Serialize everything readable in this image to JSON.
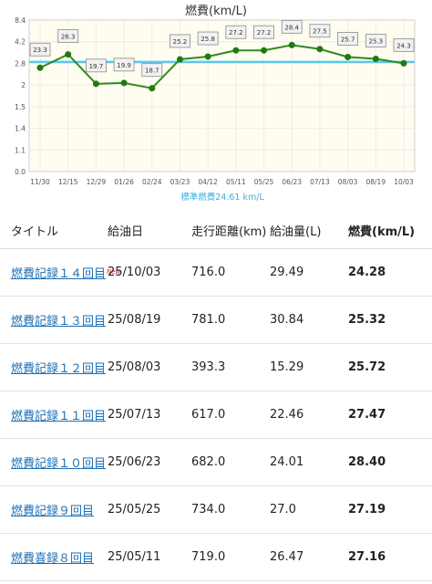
{
  "chart_data": {
    "type": "line",
    "title": "燃費(km/L)",
    "categories": [
      "11/30",
      "12/15",
      "12/29",
      "01/26",
      "02/24",
      "03/23",
      "04/12",
      "05/11",
      "05/25",
      "06/23",
      "07/13",
      "08/03",
      "08/19",
      "10/03"
    ],
    "series": [
      {
        "values": [
          23.3,
          26.3,
          19.7,
          19.9,
          18.7,
          25.2,
          25.8,
          27.2,
          27.2,
          28.4,
          27.5,
          25.7,
          25.3,
          24.3
        ]
      }
    ],
    "y_ticks": [
      "8.4",
      "4.2",
      "2.8",
      "2",
      "1.5",
      "1.4",
      "1.1",
      "0.0"
    ],
    "reference_line": {
      "value": 24.61,
      "label": "標準燃費24.61 km/L",
      "color": "#5bc8ea"
    },
    "line_color": "#2e8a1f",
    "marker_color": "#1e7a12",
    "plot_bg": "#fffdf0",
    "grid": true
  },
  "table": {
    "headers": {
      "title": "タイトル",
      "date": "給油日",
      "distance": "走行距離(km)",
      "amount": "給油量(L)",
      "efficiency": "燃費(km/L)"
    },
    "new_badge": "New",
    "rows": [
      {
        "title": "燃費記録１４回目",
        "date": "25/10/03",
        "distance": "716.0",
        "amount": "29.49",
        "efficiency": "24.28"
      },
      {
        "title": "燃費記録１３回目",
        "date": "25/08/19",
        "distance": "781.0",
        "amount": "30.84",
        "efficiency": "25.32"
      },
      {
        "title": "燃費記録１２回目",
        "date": "25/08/03",
        "distance": "393.3",
        "amount": "15.29",
        "efficiency": "25.72"
      },
      {
        "title": "燃費記録１１回目",
        "date": "25/07/13",
        "distance": "617.0",
        "amount": "22.46",
        "efficiency": "27.47"
      },
      {
        "title": "燃費記録１０回目",
        "date": "25/06/23",
        "distance": "682.0",
        "amount": "24.01",
        "efficiency": "28.40"
      },
      {
        "title": "燃費記録９回目",
        "date": "25/05/25",
        "distance": "734.0",
        "amount": "27.0",
        "efficiency": "27.19"
      },
      {
        "title": "燃費喜録８回目",
        "date": "25/05/11",
        "distance": "719.0",
        "amount": "26.47",
        "efficiency": "27.16"
      }
    ]
  }
}
